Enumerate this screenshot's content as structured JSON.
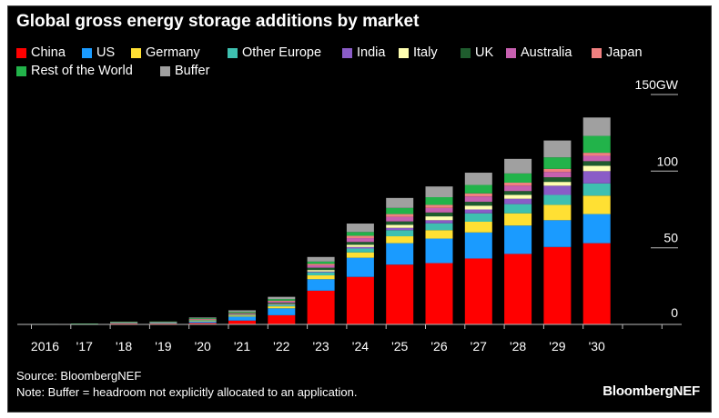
{
  "title": "Global gross energy storage additions by market",
  "source": "Source: BloombergNEF",
  "note": "Note: Buffer = headroom not explicitly allocated to an application.",
  "brand": "BloombergNEF",
  "chart_data": {
    "type": "bar",
    "stacked": true,
    "title": "Global gross energy storage additions by market",
    "unit": "GW",
    "categories": [
      "2016",
      "'17",
      "'18",
      "'19",
      "'20",
      "'21",
      "'22",
      "'23",
      "'24",
      "'25",
      "'26",
      "'27",
      "'28",
      "'29",
      "'30"
    ],
    "y_ticks": [
      "150GW",
      "100",
      "50",
      "0"
    ],
    "y_tick_values": [
      150,
      100,
      50,
      0
    ],
    "ylim": [
      0,
      150
    ],
    "legend_position": "top-left",
    "grid": false,
    "series": [
      {
        "name": "China",
        "color": "#ff0000",
        "values": [
          0.1,
          0.2,
          0.7,
          0.6,
          1.0,
          2.5,
          6.0,
          22.0,
          31.0,
          39.0,
          40.0,
          43.0,
          46.0,
          50.5,
          53.0
        ]
      },
      {
        "name": "US",
        "color": "#1a9bff",
        "values": [
          0.2,
          0.2,
          0.3,
          0.4,
          1.0,
          2.6,
          4.5,
          7.5,
          12.5,
          14.0,
          16.0,
          17.0,
          18.5,
          17.5,
          19.0
        ]
      },
      {
        "name": "Germany",
        "color": "#ffe033",
        "values": [
          0,
          0,
          0.2,
          0.2,
          0.4,
          0.6,
          1.3,
          2.5,
          3.5,
          4.5,
          5.5,
          7.0,
          8.0,
          10.0,
          12.0
        ]
      },
      {
        "name": "Other Europe",
        "color": "#3ec0b0",
        "values": [
          0,
          0,
          0.1,
          0.1,
          0.3,
          0.5,
          1.0,
          2.0,
          2.5,
          4.0,
          4.5,
          5.5,
          6.0,
          6.5,
          8.0
        ]
      },
      {
        "name": "India",
        "color": "#8a5cc7",
        "values": [
          0,
          0,
          0,
          0,
          0,
          0.1,
          0.2,
          0.5,
          1.0,
          1.5,
          2.0,
          2.5,
          3.5,
          6.0,
          8.0
        ]
      },
      {
        "name": "Italy",
        "color": "#ffffb0",
        "values": [
          0,
          0,
          0,
          0,
          0.1,
          0.1,
          0.3,
          1.0,
          1.5,
          2.0,
          2.5,
          2.5,
          2.5,
          2.5,
          3.5
        ]
      },
      {
        "name": "UK",
        "color": "#1f5c2e",
        "values": [
          0.05,
          0.1,
          0.1,
          0.2,
          0.2,
          0.4,
          0.8,
          1.5,
          1.8,
          2.2,
          2.5,
          2.5,
          2.5,
          3.0,
          3.0
        ]
      },
      {
        "name": "Australia",
        "color": "#c760b0",
        "values": [
          0,
          0,
          0.1,
          0.1,
          0.3,
          0.4,
          0.8,
          1.5,
          2.5,
          3.0,
          3.0,
          3.5,
          3.5,
          3.5,
          3.5
        ]
      },
      {
        "name": "Japan",
        "color": "#f08080",
        "values": [
          0,
          0,
          0.1,
          0.1,
          0.2,
          0.3,
          0.6,
          1.0,
          1.5,
          1.8,
          2.0,
          2.0,
          2.0,
          2.0,
          2.0
        ]
      },
      {
        "name": "Rest of the World",
        "color": "#22b34a",
        "values": [
          0,
          0.05,
          0.2,
          0.2,
          0.5,
          0.7,
          1.0,
          1.5,
          2.5,
          4.0,
          5.0,
          5.5,
          6.0,
          7.5,
          11.0
        ]
      },
      {
        "name": "Buffer",
        "color": "#a0a0a0",
        "values": [
          0,
          0,
          0,
          0,
          0.5,
          1.0,
          1.5,
          3.0,
          5.5,
          6.5,
          7.0,
          8.0,
          9.5,
          11.0,
          12.0
        ]
      }
    ]
  }
}
